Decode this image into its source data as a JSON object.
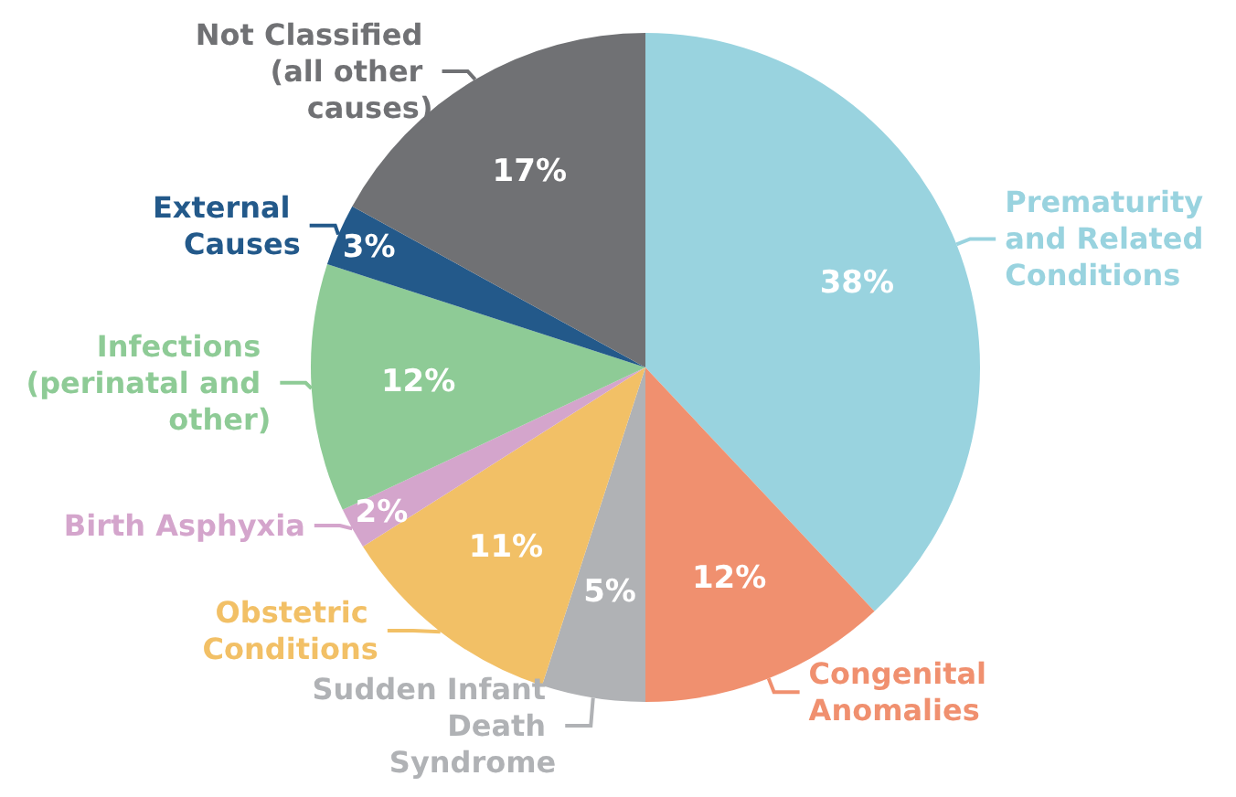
{
  "chart_data": {
    "type": "pie",
    "categories": [
      "Prematurity and Related Conditions",
      "Congenital Anomalies",
      "Sudden Infant Death Syndrome",
      "Obstetric Conditions",
      "Birth Asphyxia",
      "Infections (perinatal and other)",
      "External Causes",
      "Not Classified (all other causes)"
    ],
    "values": [
      38,
      12,
      5,
      11,
      2,
      12,
      3,
      17
    ],
    "value_labels": [
      "38%",
      "12%",
      "5%",
      "11%",
      "2%",
      "12%",
      "3%",
      "17%"
    ],
    "colors": [
      "#99d3df",
      "#f0906f",
      "#b0b2b5",
      "#f2c066",
      "#d4a5cc",
      "#8ecb96",
      "#23598a",
      "#707174"
    ],
    "legend": false
  }
}
